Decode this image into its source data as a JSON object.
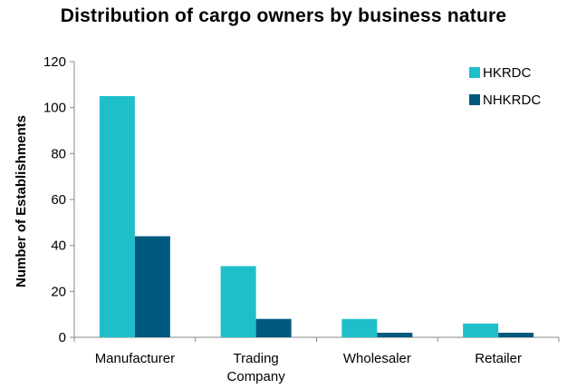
{
  "chart_data": {
    "type": "bar",
    "title": "Distribution of cargo owners by business nature",
    "xlabel": "",
    "ylabel": "Number of Establishments",
    "categories": [
      [
        "Manufacturer"
      ],
      [
        "Trading",
        "Company"
      ],
      [
        "Wholesaler"
      ],
      [
        "Retailer"
      ]
    ],
    "series": [
      {
        "name": "HKRDC",
        "color": "#1fbfc9",
        "values": [
          105,
          31,
          8,
          6
        ]
      },
      {
        "name": "NHKRDC",
        "color": "#005a80",
        "values": [
          44,
          8,
          2,
          2
        ]
      }
    ],
    "ylim": [
      0,
      120
    ],
    "yticks": [
      0,
      20,
      40,
      60,
      80,
      100,
      120
    ],
    "grid": false,
    "legend_position": "top-right"
  }
}
